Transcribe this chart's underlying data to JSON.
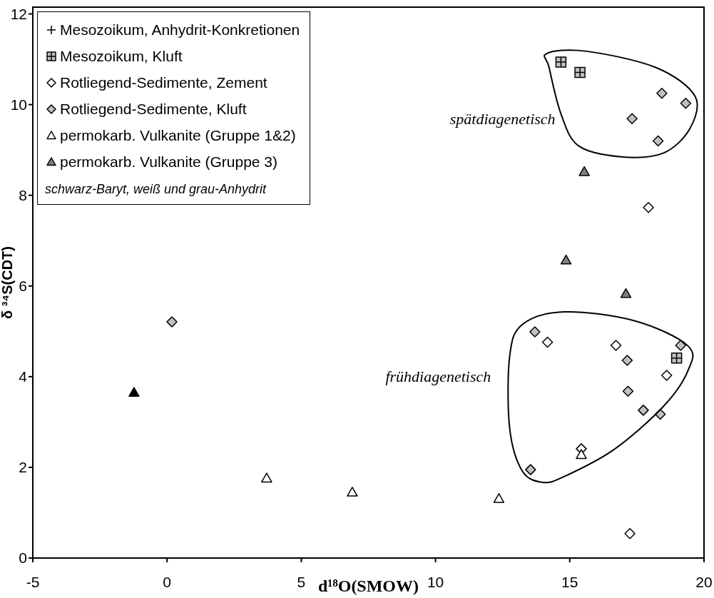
{
  "chart_data": {
    "type": "scatter",
    "xlabel": "d¹⁸O(SMOW)",
    "ylabel": "δ ³⁴S(CDT)",
    "xlim": [
      -5,
      20
    ],
    "xticks": [
      -5,
      0,
      5,
      10,
      15,
      20
    ],
    "ylim": [
      0,
      12.15
    ],
    "yticks": [
      0,
      2,
      4,
      6,
      8,
      10,
      12
    ],
    "grid": false,
    "legend": "top left",
    "series": [
      {
        "name": "Mesozoikum, Anhydrit-Konkretionen",
        "marker": "cross",
        "color": "#000000"
      },
      {
        "name": "Mesozoikum, Kluft",
        "marker": "square",
        "color": "#c0c0c0",
        "x": [
          14.67,
          15.38,
          18.98
        ],
        "values": [
          10.94,
          10.71,
          4.41
        ]
      },
      {
        "name": "Rotliegend-Sedimente, Zement",
        "marker": "diamond",
        "color": "#ffffff",
        "x": [
          17.93,
          14.17,
          16.72,
          18.61,
          15.43,
          17.24
        ],
        "values": [
          7.73,
          4.76,
          4.69,
          4.03,
          2.41,
          0.54
        ]
      },
      {
        "name": "Rotliegend-Sedimente, Kluft",
        "marker": "diamond",
        "color": "#c0c0c0",
        "x": [
          18.43,
          19.32,
          17.32,
          18.29,
          0.18,
          13.7,
          17.14,
          19.13,
          17.17,
          17.74,
          18.37,
          13.54
        ],
        "values": [
          10.25,
          10.03,
          9.69,
          9.2,
          5.21,
          4.99,
          4.36,
          4.69,
          3.68,
          3.26,
          3.17,
          1.95
        ]
      },
      {
        "name": "permokarb. Vulkanite (Gruppe 1&2)",
        "marker": "triangle",
        "color": "#ffffff",
        "x": [
          15.43,
          12.36,
          3.71,
          6.9
        ],
        "values": [
          2.28,
          1.31,
          1.76,
          1.45
        ]
      },
      {
        "name": "permokarb. Vulkanite (Gruppe 3)",
        "marker": "triangle",
        "color": "#808080",
        "x": [
          15.54,
          14.86,
          17.09
        ],
        "values": [
          8.52,
          6.57,
          5.83
        ]
      },
      {
        "marker": "triangle",
        "color": "#000000",
        "x": [
          -1.23
        ],
        "values": [
          3.65
        ]
      }
    ],
    "annotations": [
      "spätdiagenetisch",
      "frühdiagenetisch",
      "schwarz-Baryt, weiß und grau-Anhydrit"
    ]
  }
}
